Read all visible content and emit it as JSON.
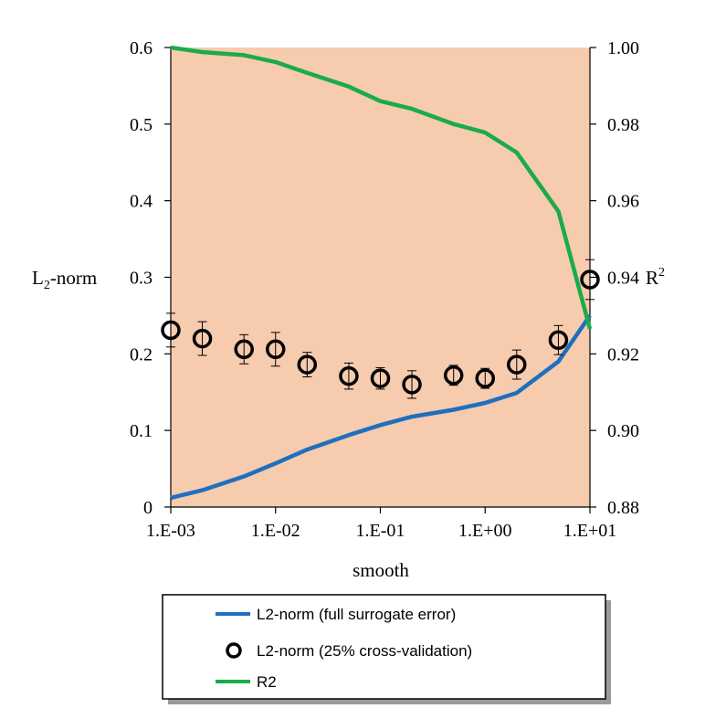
{
  "chart_data": {
    "type": "line",
    "xscale": "log",
    "xlabel": "smooth",
    "x_ticks": [
      0.001,
      0.01,
      0.1,
      1,
      10
    ],
    "x_tick_labels": [
      "1.E-03",
      "1.E-02",
      "1.E-01",
      "1.E+00",
      "1.E+01"
    ],
    "y_left": {
      "label_main": "L",
      "label_sub": "2",
      "label_rest": "-norm",
      "ylim": [
        0,
        0.6
      ],
      "ticks": [
        0,
        0.1,
        0.2,
        0.3,
        0.4,
        0.5,
        0.6
      ],
      "tick_labels": [
        "0",
        "0.1",
        "0.2",
        "0.3",
        "0.4",
        "0.5",
        "0.6"
      ]
    },
    "y_right": {
      "label_main": "R",
      "label_sup": "2",
      "ylim": [
        0.88,
        1.0
      ],
      "ticks": [
        0.88,
        0.9,
        0.92,
        0.94,
        0.96,
        0.98,
        1.0
      ],
      "tick_labels": [
        "0.88",
        "0.90",
        "0.92",
        "0.94",
        "0.96",
        "0.98",
        "1.00"
      ]
    },
    "series": [
      {
        "name": "L2-norm (full surrogate error)",
        "kind": "line",
        "axis": "left",
        "color": "#1f6fc0",
        "x": [
          0.001,
          0.002,
          0.005,
          0.01,
          0.02,
          0.05,
          0.1,
          0.2,
          0.5,
          1,
          2,
          5,
          10
        ],
        "y": [
          0.012,
          0.022,
          0.04,
          0.057,
          0.075,
          0.094,
          0.107,
          0.118,
          0.127,
          0.136,
          0.149,
          0.19,
          0.25
        ]
      },
      {
        "name": "L2-norm (25% cross-validation)",
        "kind": "markers",
        "axis": "left",
        "color": "#000000",
        "x": [
          0.001,
          0.002,
          0.005,
          0.01,
          0.02,
          0.05,
          0.1,
          0.2,
          0.5,
          1,
          2,
          5,
          10
        ],
        "y": [
          0.231,
          0.22,
          0.206,
          0.206,
          0.186,
          0.171,
          0.168,
          0.16,
          0.172,
          0.168,
          0.186,
          0.218,
          0.297
        ],
        "err": [
          0.022,
          0.022,
          0.019,
          0.022,
          0.016,
          0.017,
          0.014,
          0.018,
          0.013,
          0.013,
          0.019,
          0.019,
          0.026
        ]
      },
      {
        "name": "R2",
        "kind": "line",
        "axis": "right",
        "color": "#1aab4b",
        "x": [
          0.001,
          0.002,
          0.005,
          0.01,
          0.02,
          0.05,
          0.1,
          0.2,
          0.5,
          1,
          2,
          5,
          10
        ],
        "y": [
          1.0,
          0.9988,
          0.998,
          0.9962,
          0.9934,
          0.9898,
          0.986,
          0.984,
          0.98,
          0.9778,
          0.9726,
          0.9572,
          0.9265
        ]
      }
    ],
    "plot_background": "#f7cbae"
  }
}
